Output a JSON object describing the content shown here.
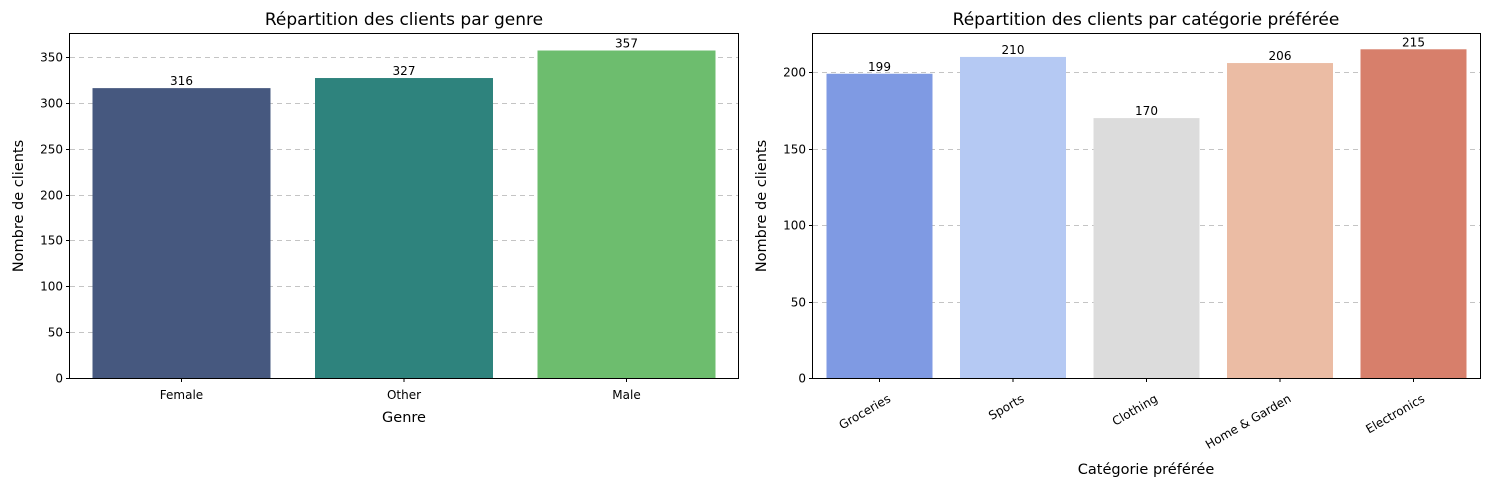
{
  "chart_data": [
    {
      "type": "bar",
      "title": "Répartition des clients par genre",
      "xlabel": "Genre",
      "ylabel": "Nombre de clients",
      "categories": [
        "Female",
        "Other",
        "Male"
      ],
      "values": [
        316,
        327,
        357
      ],
      "data_labels": [
        "316",
        "327",
        "357"
      ],
      "colors": [
        "#46587f",
        "#2e837d",
        "#6dbd6e"
      ],
      "ylim": [
        0,
        375
      ],
      "yticks": [
        0,
        50,
        100,
        150,
        200,
        250,
        300,
        350
      ],
      "ytick_labels": [
        "0",
        "50",
        "100",
        "150",
        "200",
        "250",
        "300",
        "350"
      ],
      "grid": "y-dashed",
      "xtick_rotation": 0
    },
    {
      "type": "bar",
      "title": "Répartition des clients par catégorie préférée",
      "xlabel": "Catégorie préférée",
      "ylabel": "Nombre de clients",
      "categories": [
        "Groceries",
        "Sports",
        "Clothing",
        "Home & Garden",
        "Electronics"
      ],
      "values": [
        199,
        210,
        170,
        206,
        215
      ],
      "data_labels": [
        "199",
        "210",
        "170",
        "206",
        "215"
      ],
      "colors": [
        "#7f9ae3",
        "#b5c9f3",
        "#dcdcdc",
        "#ebbca4",
        "#d77f6b"
      ],
      "ylim": [
        0,
        225
      ],
      "yticks": [
        0,
        50,
        100,
        150,
        200
      ],
      "ytick_labels": [
        "0",
        "50",
        "100",
        "150",
        "200"
      ],
      "grid": "y-dashed",
      "xtick_rotation": -30
    }
  ]
}
